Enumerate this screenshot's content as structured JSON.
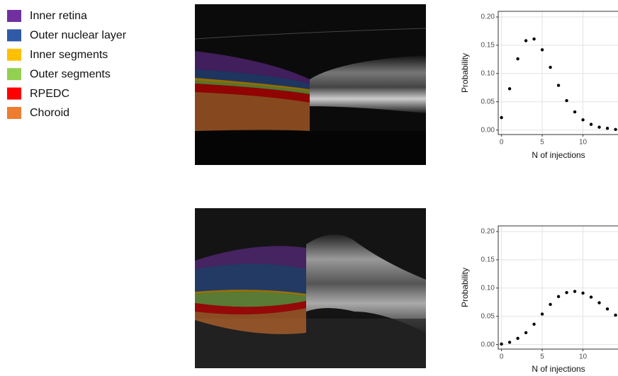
{
  "legend": {
    "items": [
      {
        "label": "Inner retina",
        "color": "#7030a0"
      },
      {
        "label": "Outer nuclear layer",
        "color": "#2f5aa8"
      },
      {
        "label": "Inner segments",
        "color": "#ffc000"
      },
      {
        "label": "Outer segments",
        "color": "#92d050"
      },
      {
        "label": "RPEDC",
        "color": "#ff0000"
      },
      {
        "label": "Choroid",
        "color": "#ed7d31"
      }
    ]
  },
  "chart_data": [
    {
      "type": "scatter",
      "x_label": "N of injections",
      "y_label": "Probability",
      "color": "#000000",
      "grid": true,
      "x": [
        0,
        1,
        2,
        3,
        4,
        5,
        6,
        7,
        8,
        9,
        10,
        11,
        12,
        13,
        14
      ],
      "values": [
        0.022,
        0.073,
        0.126,
        0.158,
        0.161,
        0.142,
        0.111,
        0.079,
        0.052,
        0.032,
        0.018,
        0.01,
        0.005,
        0.003,
        0.001
      ],
      "xlim": [
        -0.4,
        14.3
      ],
      "ylim": [
        -0.008,
        0.21
      ],
      "xticks": [
        0,
        5,
        10
      ],
      "yticks": [
        {
          "value": 0,
          "label": "0.00"
        },
        {
          "value": 0.05,
          "label": "0.05"
        },
        {
          "value": 0.1,
          "label": "0.10"
        },
        {
          "value": 0.15,
          "label": "0.15"
        },
        {
          "value": 0.2,
          "label": "0.20"
        }
      ]
    },
    {
      "type": "scatter",
      "x_label": "N of injections",
      "y_label": "Probability",
      "color": "#000000",
      "grid": true,
      "x": [
        0,
        1,
        2,
        3,
        4,
        5,
        6,
        7,
        8,
        9,
        10,
        11,
        12,
        13,
        14
      ],
      "values": [
        0.001,
        0.004,
        0.011,
        0.021,
        0.036,
        0.054,
        0.071,
        0.085,
        0.092,
        0.094,
        0.091,
        0.084,
        0.074,
        0.063,
        0.052
      ],
      "xlim": [
        -0.4,
        14.3
      ],
      "ylim": [
        -0.008,
        0.21
      ],
      "xticks": [
        0,
        5,
        10
      ],
      "yticks": [
        {
          "value": 0,
          "label": "0.00"
        },
        {
          "value": 0.05,
          "label": "0.05"
        },
        {
          "value": 0.1,
          "label": "0.10"
        },
        {
          "value": 0.15,
          "label": "0.15"
        },
        {
          "value": 0.2,
          "label": "0.20"
        }
      ]
    }
  ]
}
